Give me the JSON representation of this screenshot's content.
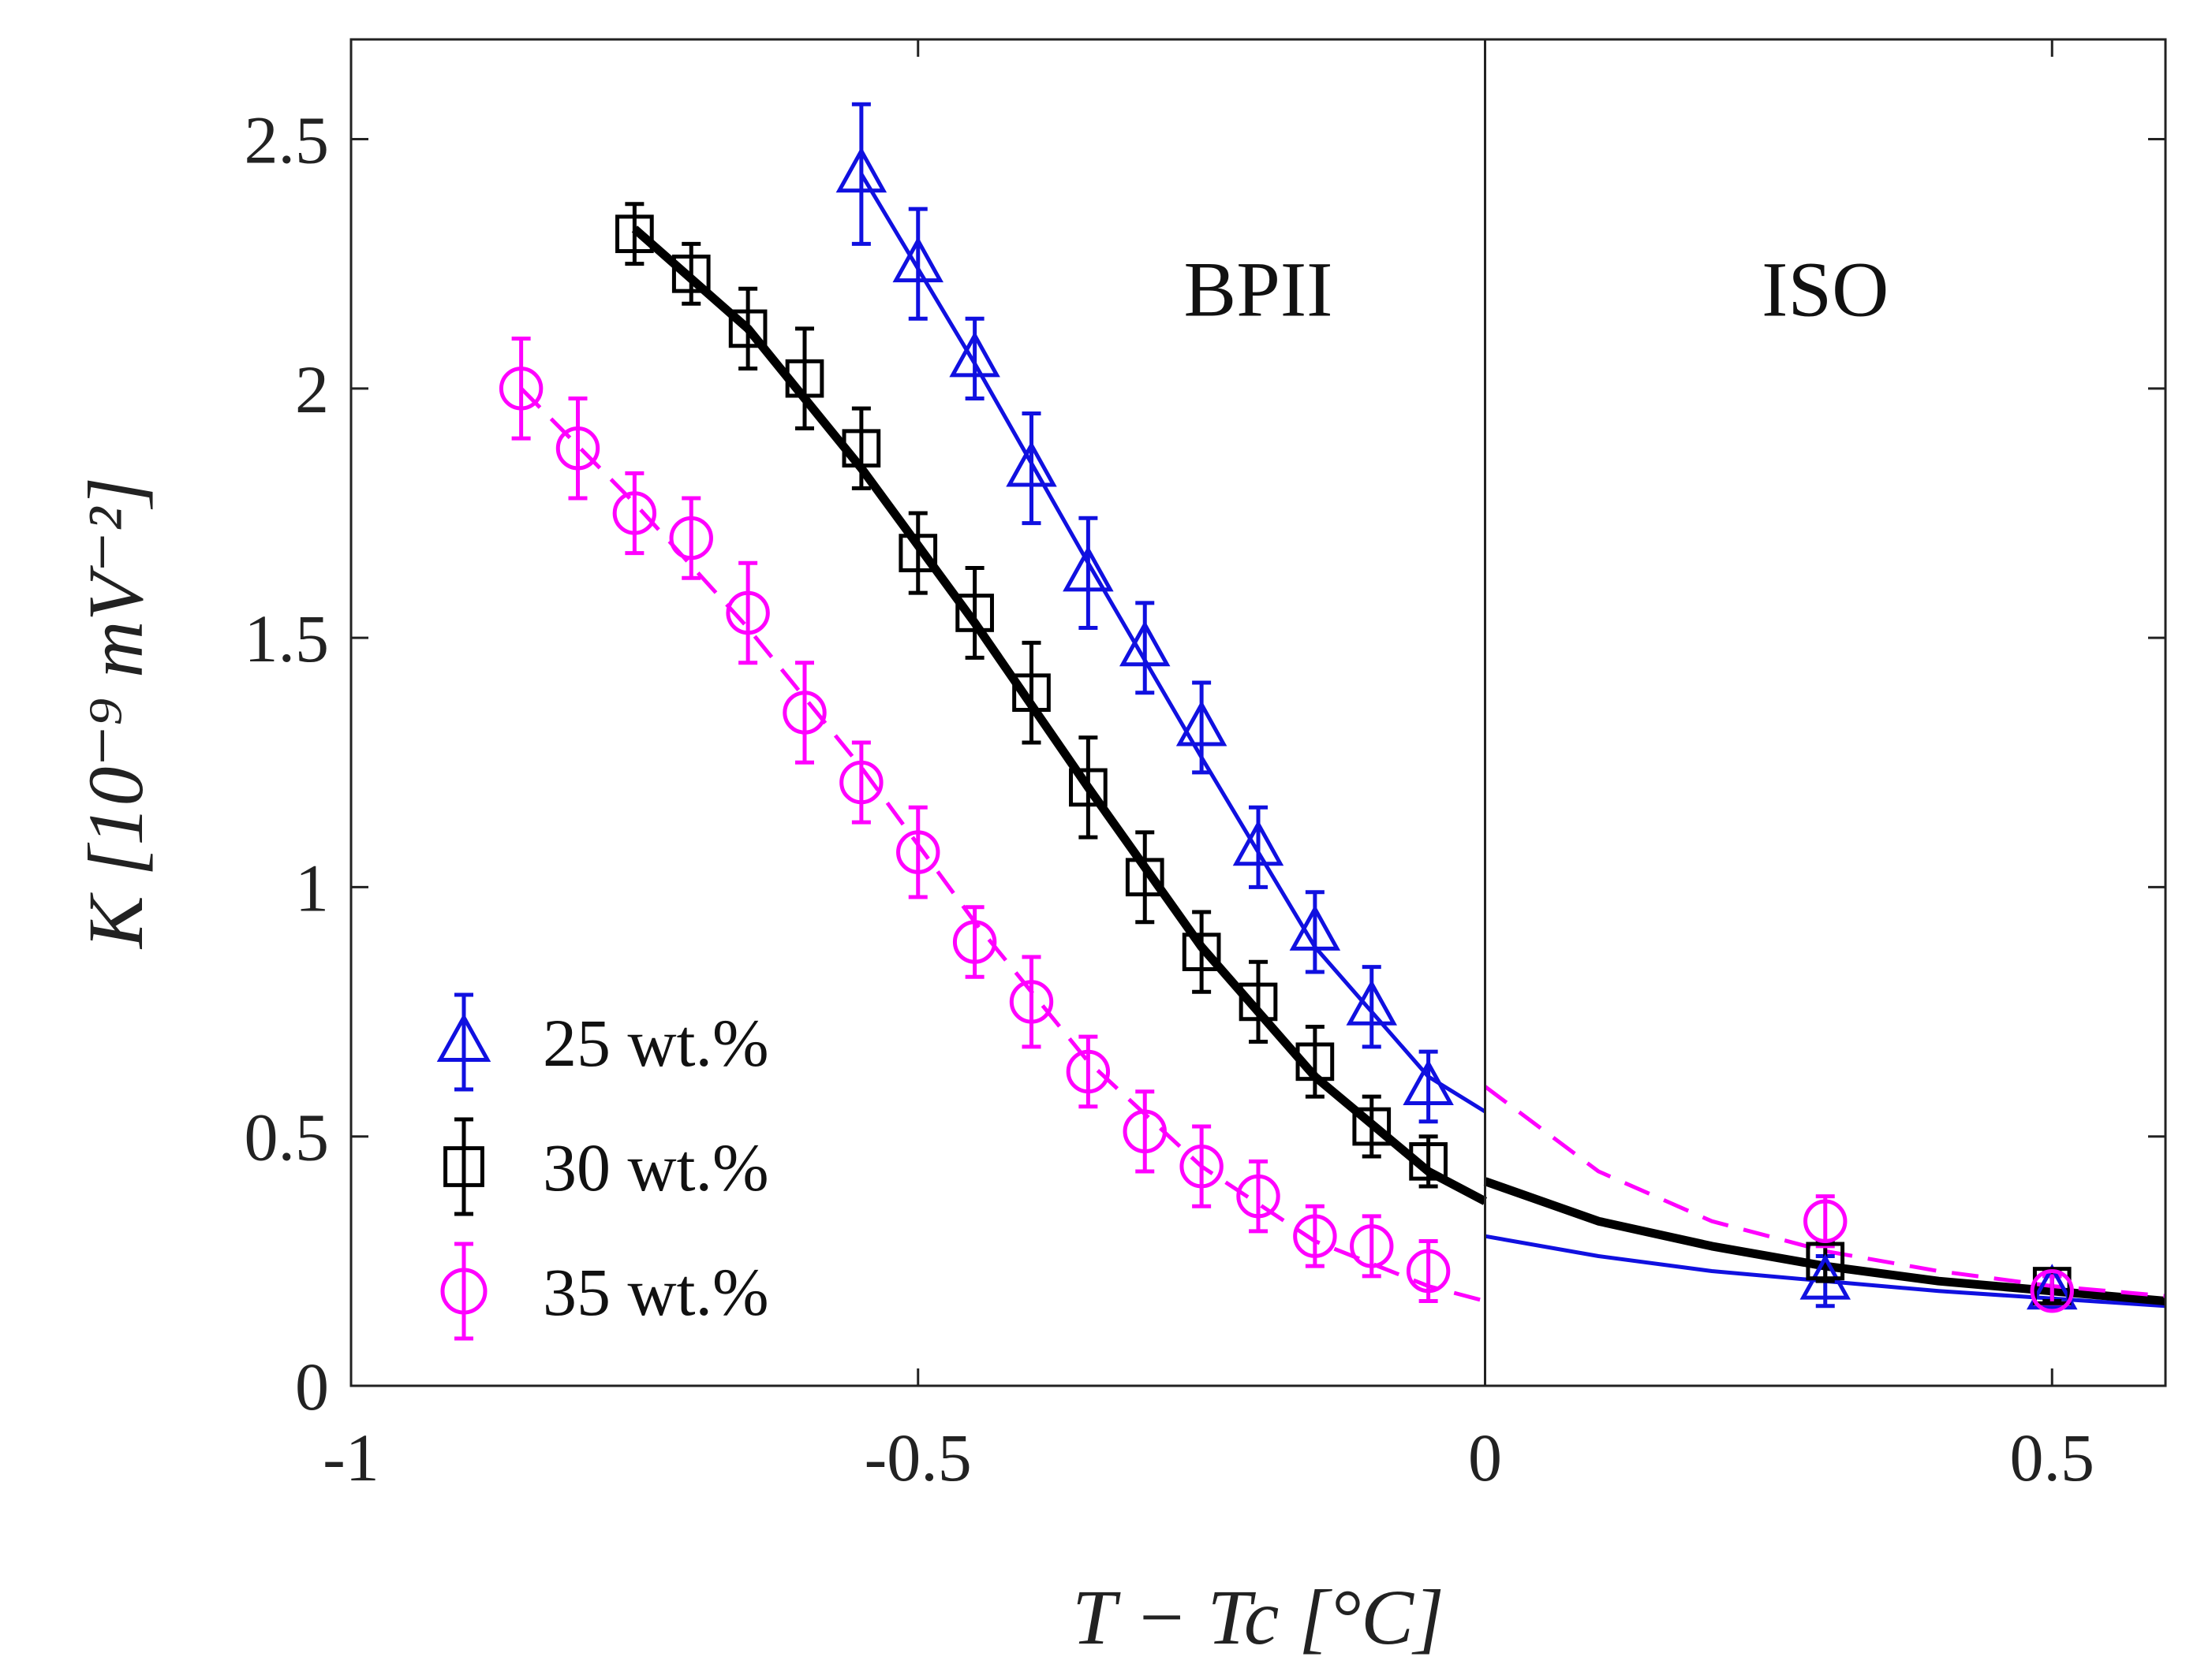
{
  "chart_data": {
    "type": "scatter",
    "title": "",
    "xlabel": "T − Tc [°C]",
    "ylabel": "K [10⁻⁹ mV⁻²]",
    "xlim": [
      -1,
      0.6
    ],
    "ylim": [
      0,
      2.7
    ],
    "xticks": [
      -1,
      -0.5,
      0,
      0.5
    ],
    "xtick_labels": [
      "-1",
      "-0.5",
      "0",
      "0.5"
    ],
    "yticks": [
      0,
      0.5,
      1,
      1.5,
      2,
      2.5
    ],
    "ytick_labels": [
      "0",
      "0.5",
      "1",
      "1.5",
      "2",
      "2.5"
    ],
    "grid": false,
    "legend_position": "bottom-left",
    "phase_boundary_x": 0,
    "regions": [
      {
        "label": "BPII",
        "x": -0.2,
        "y": 2.2
      },
      {
        "label": "ISO",
        "x": 0.3,
        "y": 2.2
      }
    ],
    "series": [
      {
        "name": "25 wt.%",
        "legend_label": "25 wt.%",
        "color": "#1010e0",
        "marker": "triangle",
        "x": [
          -0.55,
          -0.5,
          -0.45,
          -0.4,
          -0.35,
          -0.3,
          -0.25,
          -0.2,
          -0.15,
          -0.1,
          -0.05,
          0.3,
          0.5
        ],
        "y": [
          2.43,
          2.25,
          2.06,
          1.84,
          1.63,
          1.48,
          1.32,
          1.08,
          0.91,
          0.76,
          0.6,
          0.21,
          0.19
        ],
        "err": [
          0.14,
          0.11,
          0.08,
          0.11,
          0.11,
          0.09,
          0.09,
          0.08,
          0.08,
          0.08,
          0.07,
          0.05,
          0.03
        ],
        "fit_below": {
          "style": "solid",
          "width": "thin",
          "x": [
            -0.55,
            -0.45,
            -0.35,
            -0.25,
            -0.15,
            -0.05,
            0.0
          ],
          "y": [
            2.43,
            2.05,
            1.65,
            1.26,
            0.88,
            0.62,
            0.55
          ]
        },
        "fit_above": {
          "style": "solid",
          "width": "thin",
          "x": [
            0.0,
            0.1,
            0.2,
            0.3,
            0.4,
            0.5,
            0.6
          ],
          "y": [
            0.3,
            0.26,
            0.23,
            0.21,
            0.19,
            0.175,
            0.16
          ]
        }
      },
      {
        "name": "30 wt.%",
        "legend_label": "30 wt.%",
        "color": "#000000",
        "marker": "square",
        "x": [
          -0.75,
          -0.7,
          -0.65,
          -0.6,
          -0.55,
          -0.5,
          -0.45,
          -0.4,
          -0.35,
          -0.3,
          -0.25,
          -0.2,
          -0.15,
          -0.1,
          -0.05,
          0.3,
          0.5
        ],
        "y": [
          2.31,
          2.23,
          2.12,
          2.02,
          1.88,
          1.67,
          1.55,
          1.39,
          1.2,
          1.02,
          0.87,
          0.77,
          0.65,
          0.52,
          0.45,
          0.25,
          0.2
        ],
        "err": [
          0.06,
          0.06,
          0.08,
          0.1,
          0.08,
          0.08,
          0.09,
          0.1,
          0.1,
          0.09,
          0.08,
          0.08,
          0.07,
          0.06,
          0.05,
          0.04,
          0.03
        ],
        "fit_below": {
          "style": "solid",
          "width": "thick",
          "x": [
            -0.75,
            -0.65,
            -0.55,
            -0.45,
            -0.35,
            -0.25,
            -0.15,
            -0.05,
            0.0
          ],
          "y": [
            2.32,
            2.12,
            1.84,
            1.53,
            1.2,
            0.88,
            0.62,
            0.43,
            0.37
          ]
        },
        "fit_above": {
          "style": "solid",
          "width": "thick",
          "x": [
            0.0,
            0.1,
            0.2,
            0.3,
            0.4,
            0.5,
            0.6
          ],
          "y": [
            0.41,
            0.33,
            0.28,
            0.24,
            0.21,
            0.19,
            0.17
          ]
        }
      },
      {
        "name": "35 wt.%",
        "legend_label": "35 wt.%",
        "color": "#ff00ff",
        "marker": "circle",
        "x": [
          -0.85,
          -0.8,
          -0.75,
          -0.7,
          -0.65,
          -0.6,
          -0.55,
          -0.5,
          -0.45,
          -0.4,
          -0.35,
          -0.3,
          -0.25,
          -0.2,
          -0.15,
          -0.1,
          -0.05,
          0.3,
          0.5
        ],
        "y": [
          2.0,
          1.88,
          1.75,
          1.7,
          1.55,
          1.35,
          1.21,
          1.07,
          0.89,
          0.77,
          0.63,
          0.51,
          0.44,
          0.38,
          0.3,
          0.28,
          0.23,
          0.33,
          0.19
        ],
        "err": [
          0.1,
          0.1,
          0.08,
          0.08,
          0.1,
          0.1,
          0.08,
          0.09,
          0.07,
          0.09,
          0.07,
          0.08,
          0.08,
          0.07,
          0.06,
          0.06,
          0.06,
          0.05,
          0.03
        ],
        "fit_below": {
          "style": "dashed",
          "width": "thin",
          "x": [
            -0.85,
            -0.75,
            -0.65,
            -0.55,
            -0.45,
            -0.35,
            -0.25,
            -0.15,
            -0.05,
            0.0
          ],
          "y": [
            2.0,
            1.77,
            1.52,
            1.24,
            0.93,
            0.65,
            0.44,
            0.29,
            0.2,
            0.17
          ]
        },
        "fit_above": {
          "style": "dashed",
          "width": "thin",
          "x": [
            0.0,
            0.1,
            0.2,
            0.3,
            0.4,
            0.5,
            0.6
          ],
          "y": [
            0.6,
            0.43,
            0.33,
            0.27,
            0.23,
            0.2,
            0.18
          ]
        }
      }
    ]
  }
}
